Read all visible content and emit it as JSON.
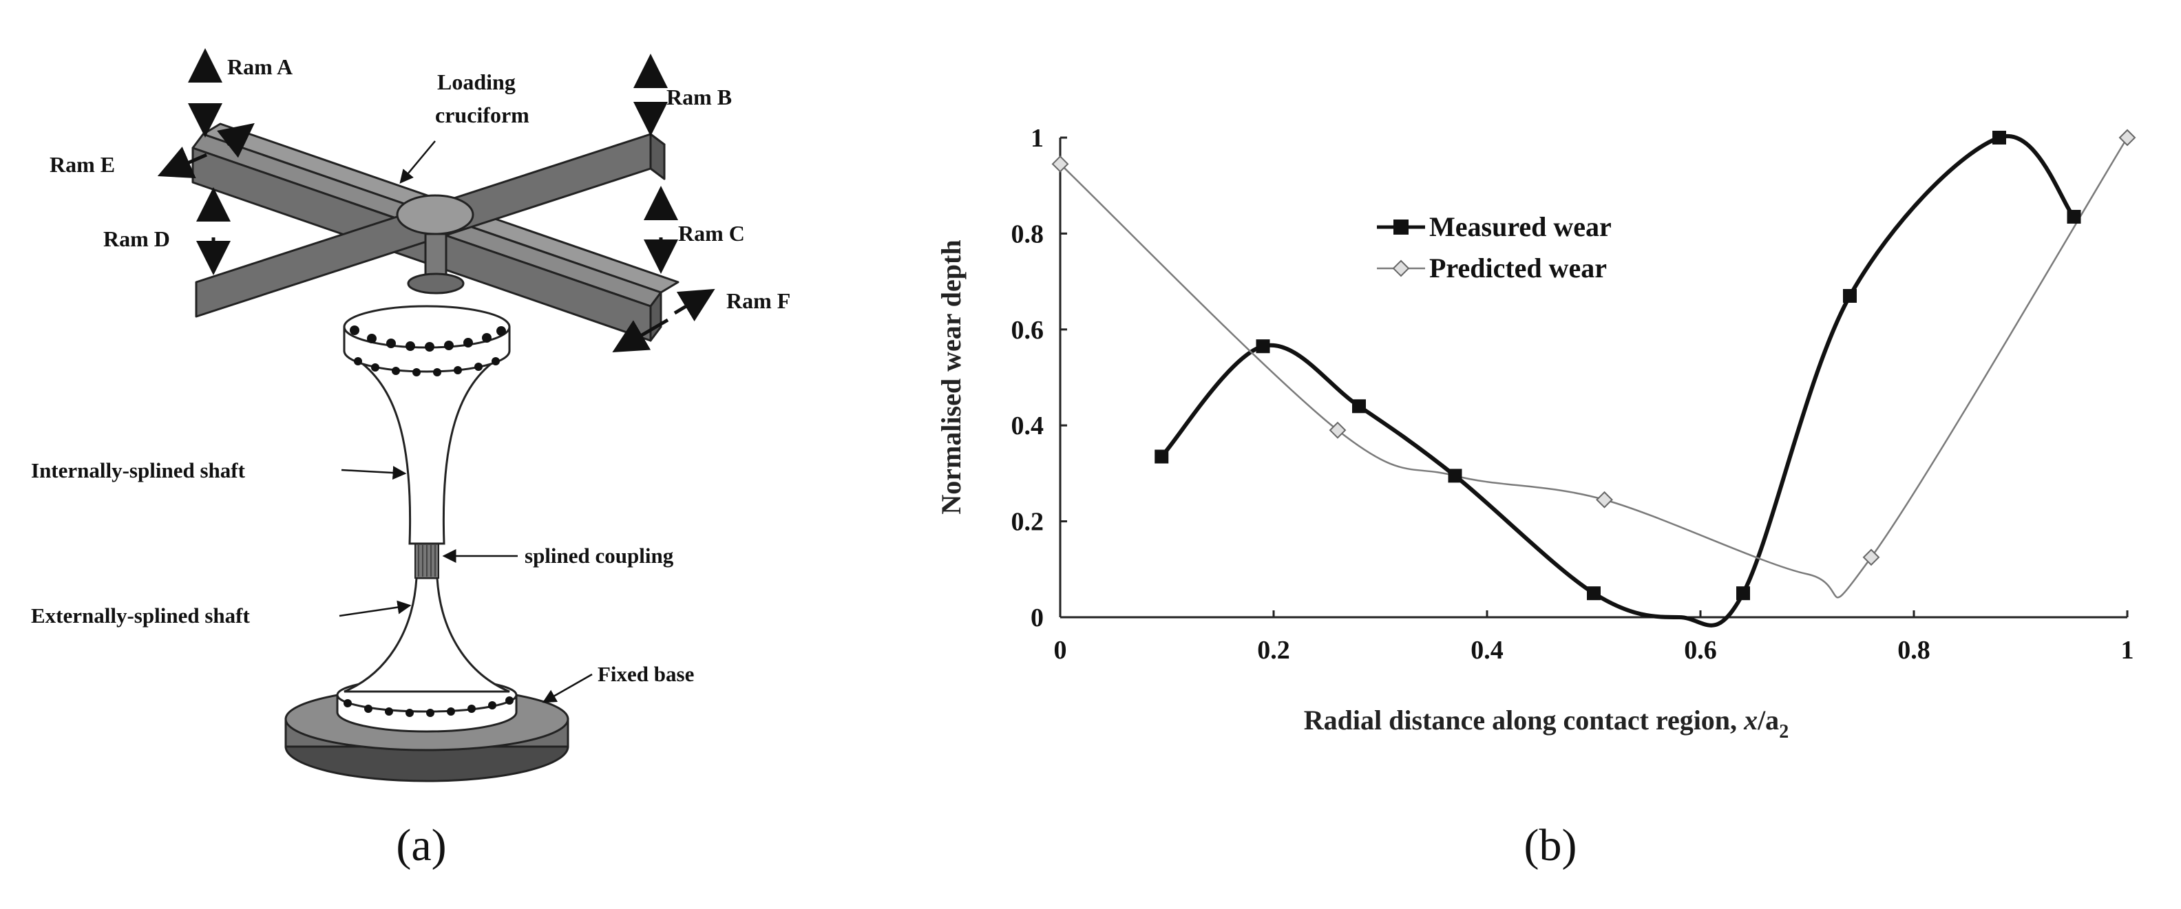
{
  "figure_a": {
    "panel_label": "(a)",
    "labels": {
      "ram_a": "Ram A",
      "ram_b": "Ram  B",
      "ram_c": "Ram  C",
      "ram_d": "Ram  D",
      "ram_e": "Ram  E",
      "ram_f": "Ram  F",
      "loading_line1": "Loading",
      "loading_line2": "cruciform",
      "internally_splined_shaft": "Internally-splined shaft",
      "splined_coupling": "splined coupling",
      "externally_splined_shaft": "Externally-splined shaft",
      "fixed_base": "Fixed base"
    }
  },
  "figure_b": {
    "panel_label": "(b)"
  },
  "chart_data": {
    "type": "line",
    "title": "",
    "xlabel_main": "Radial distance along contact region, ",
    "xlabel_var": "x",
    "xlabel_tail": "/a",
    "xlabel_sub": "2",
    "ylabel": "Normalised wear depth",
    "xlim": [
      0,
      1
    ],
    "ylim": [
      0,
      1
    ],
    "x_ticks": [
      0,
      0.2,
      0.4,
      0.6,
      0.8,
      1
    ],
    "x_tick_labels": [
      "0",
      "0.2",
      "0.4",
      "0.6",
      "0.8",
      "1"
    ],
    "y_ticks": [
      0,
      0.2,
      0.4,
      0.6,
      0.8,
      1
    ],
    "y_tick_labels": [
      "0",
      "0.2",
      "0.4",
      "0.6",
      "0.8",
      "1"
    ],
    "legend_position": "upper-center",
    "series": [
      {
        "name": "Measured wear",
        "color": "#111111",
        "marker": "square",
        "line_style": "thick",
        "points": [
          [
            0.095,
            0.335
          ],
          [
            0.19,
            0.565
          ],
          [
            0.28,
            0.44
          ],
          [
            0.37,
            0.295
          ],
          [
            0.5,
            0.05
          ],
          [
            0.58,
            0.0
          ],
          [
            0.64,
            0.05
          ],
          [
            0.74,
            0.67
          ],
          [
            0.88,
            1.0
          ],
          [
            0.95,
            0.835
          ]
        ],
        "marker_points": [
          [
            0.095,
            0.335
          ],
          [
            0.19,
            0.565
          ],
          [
            0.28,
            0.44
          ],
          [
            0.37,
            0.295
          ],
          [
            0.5,
            0.05
          ],
          [
            0.64,
            0.05
          ],
          [
            0.74,
            0.67
          ],
          [
            0.88,
            1.0
          ],
          [
            0.95,
            0.835
          ]
        ]
      },
      {
        "name": "Predicted wear",
        "color": "#7a7a7a",
        "marker": "diamond",
        "line_style": "thin",
        "points": [
          [
            0.0,
            0.945
          ],
          [
            0.26,
            0.39
          ],
          [
            0.37,
            0.295
          ],
          [
            0.51,
            0.245
          ],
          [
            0.7,
            0.09
          ],
          [
            0.76,
            0.125
          ],
          [
            1.0,
            1.0
          ]
        ],
        "marker_points": [
          [
            0.0,
            0.945
          ],
          [
            0.26,
            0.39
          ],
          [
            0.51,
            0.245
          ],
          [
            0.76,
            0.125
          ],
          [
            1.0,
            1.0
          ]
        ]
      }
    ]
  }
}
